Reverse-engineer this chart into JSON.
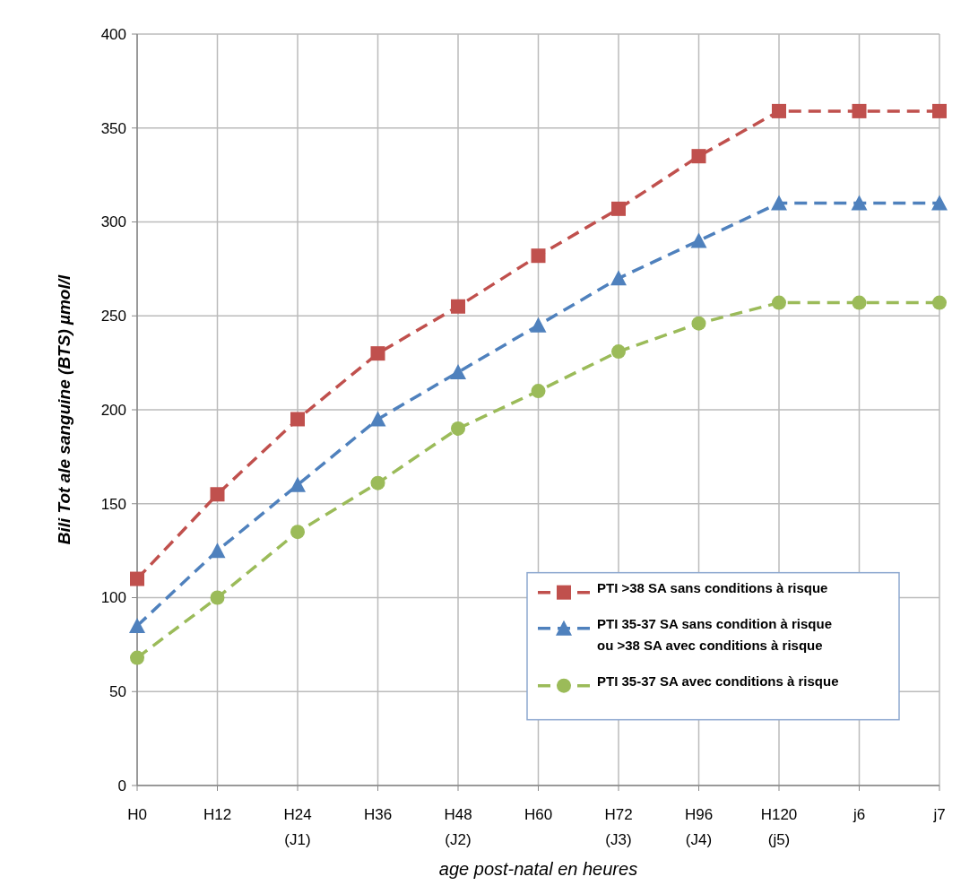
{
  "chart_data": {
    "type": "line",
    "xlabel": "age post-natal en heures",
    "ylabel": "Bili Tot ale sanguine (BTS)  µmol/l",
    "categories": [
      "H0",
      "H12",
      "H24\n(J1)",
      "H36",
      "H48\n(J2)",
      "H60",
      "H72\n(J3)",
      "H96\n(J4)",
      "H120\n(j5)",
      "j6",
      "j7"
    ],
    "series": [
      {
        "name": "PTI >38 SA sans conditions à risque",
        "color": "#c0504d",
        "marker": "square",
        "values": [
          110,
          155,
          195,
          230,
          255,
          282,
          307,
          335,
          359,
          359,
          359
        ]
      },
      {
        "name": "PTI 35-37 SA sans condition à risque\nou >38 SA avec conditions à risque",
        "color": "#4f81bd",
        "marker": "triangle",
        "values": [
          85,
          125,
          160,
          195,
          220,
          245,
          270,
          290,
          310,
          310,
          310
        ]
      },
      {
        "name": "PTI 35-37 SA avec conditions à risque",
        "color": "#9bbb59",
        "marker": "circle",
        "values": [
          68,
          100,
          135,
          161,
          190,
          210,
          231,
          246,
          257,
          257,
          257
        ]
      }
    ],
    "ylim": [
      0,
      400
    ],
    "yticks": [
      0,
      50,
      100,
      150,
      200,
      250,
      300,
      350,
      400
    ],
    "grid": true,
    "legend": "bottom right",
    "line_style": "dashed"
  }
}
